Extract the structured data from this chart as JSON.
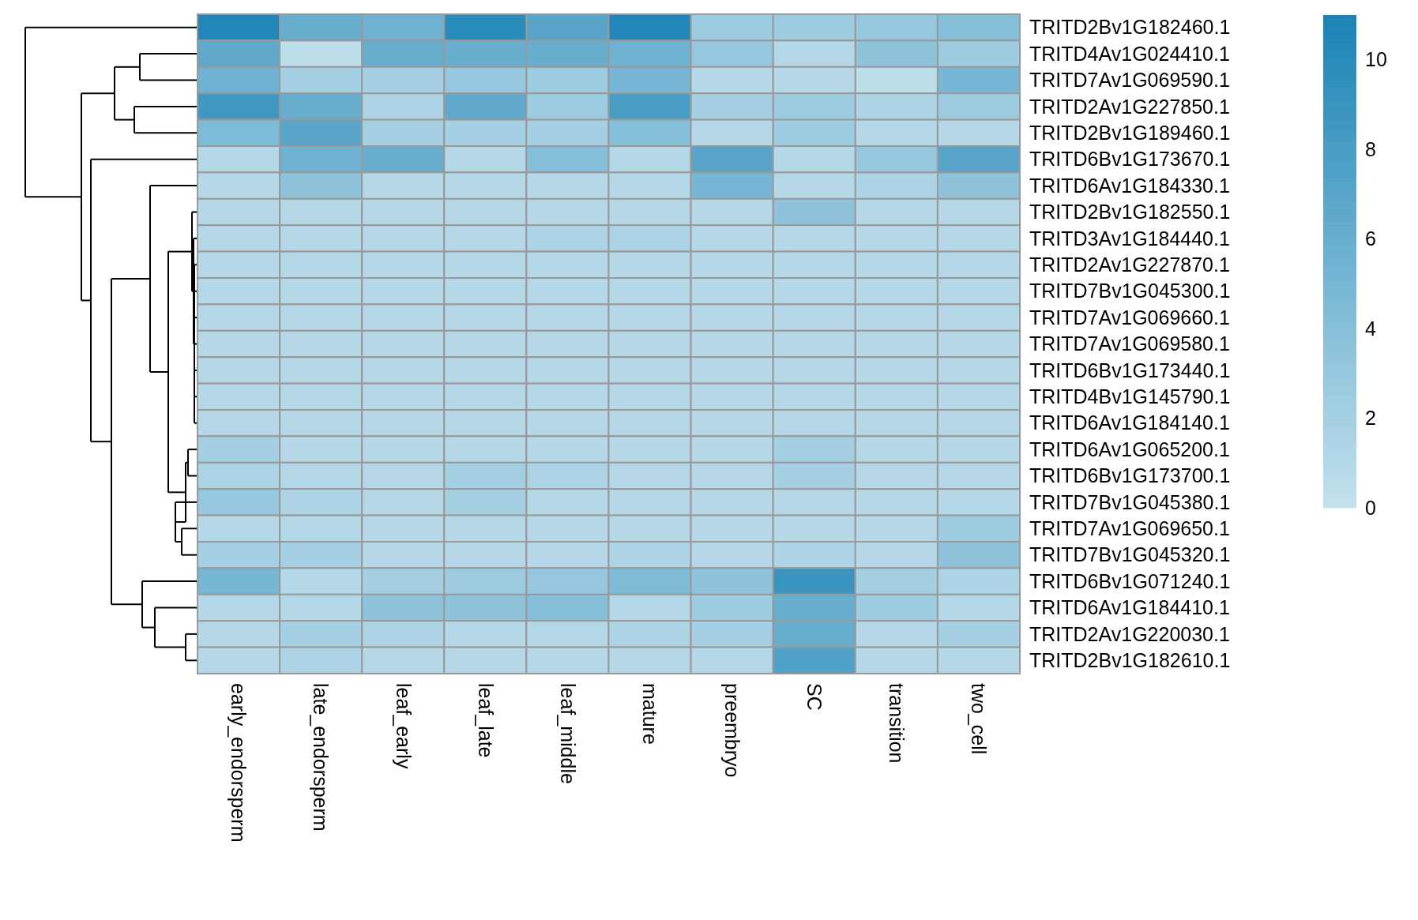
{
  "chart_data": {
    "type": "heatmap",
    "categories": [
      "early_endorsperm",
      "late_endorsperm",
      "leaf_early",
      "leaf_late",
      "leaf_middle",
      "mature",
      "preembryo",
      "SC",
      "transition",
      "two_cell"
    ],
    "y_categories": [
      "TRITD2Bv1G182460.1",
      "TRITD4Av1G024410.1",
      "TRITD7Av1G069590.1",
      "TRITD2Av1G227850.1",
      "TRITD2Bv1G189460.1",
      "TRITD6Bv1G173670.1",
      "TRITD6Av1G184330.1",
      "TRITD2Bv1G182550.1",
      "TRITD3Av1G184440.1",
      "TRITD2Av1G227870.1",
      "TRITD7Bv1G045300.1",
      "TRITD7Av1G069660.1",
      "TRITD7Av1G069580.1",
      "TRITD6Bv1G173440.1",
      "TRITD4Bv1G145790.1",
      "TRITD6Av1G184140.1",
      "TRITD6Av1G065200.1",
      "TRITD6Bv1G173700.1",
      "TRITD7Bv1G045380.1",
      "TRITD7Av1G069650.1",
      "TRITD7Bv1G045320.1",
      "TRITD6Bv1G071240.1",
      "TRITD6Av1G184410.1",
      "TRITD2Av1G220030.1",
      "TRITD2Bv1G182610.1"
    ],
    "cells": [
      [
        10.5,
        6,
        5.5,
        10,
        7,
        10.5,
        2.5,
        2.5,
        3,
        4
      ],
      [
        6.5,
        0.5,
        6,
        6,
        6,
        5.5,
        3,
        1,
        3.5,
        2.5
      ],
      [
        5.5,
        2,
        2,
        3,
        2.5,
        5,
        1,
        1,
        0.5,
        5
      ],
      [
        8.5,
        6,
        1.5,
        6.5,
        2.5,
        8,
        2,
        2.5,
        1.5,
        2.5
      ],
      [
        4.5,
        7,
        2,
        2,
        2,
        4,
        1,
        2.5,
        1,
        1
      ],
      [
        1,
        5.5,
        6,
        1,
        4,
        1,
        7,
        1,
        3,
        7
      ],
      [
        1,
        3.5,
        1,
        1,
        1,
        1,
        5,
        1,
        1.5,
        3.5
      ],
      [
        1,
        1,
        1,
        1,
        1,
        1,
        1,
        3.5,
        1,
        1
      ],
      [
        1,
        1,
        1,
        1,
        1.5,
        1.5,
        1,
        1,
        1,
        1
      ],
      [
        1,
        1,
        1,
        1,
        1,
        1,
        1,
        1,
        1,
        1
      ],
      [
        1,
        1,
        1,
        1,
        1,
        1,
        1,
        1,
        1,
        1
      ],
      [
        1,
        1,
        1,
        1,
        1,
        1,
        1,
        1,
        1,
        1
      ],
      [
        1,
        1,
        1,
        1,
        1,
        1,
        1,
        1,
        1,
        1
      ],
      [
        1,
        1,
        1,
        1,
        1,
        1,
        1,
        1,
        1,
        1
      ],
      [
        1,
        1,
        1,
        1,
        1,
        1,
        1,
        1,
        1,
        1
      ],
      [
        1,
        1,
        1,
        1,
        1,
        1,
        1,
        1,
        1,
        1
      ],
      [
        2,
        1,
        1,
        1,
        1,
        1,
        1,
        2,
        1,
        1
      ],
      [
        1.5,
        1,
        1,
        2,
        1.5,
        1,
        1,
        2,
        1,
        1
      ],
      [
        3,
        1.5,
        1,
        2,
        1,
        1,
        1,
        1,
        1,
        1
      ],
      [
        1,
        1,
        1,
        1,
        1,
        1,
        1,
        1,
        1,
        2.5
      ],
      [
        2,
        2,
        1,
        1,
        1,
        1.5,
        1,
        1.5,
        1,
        3.5
      ],
      [
        5,
        1,
        2,
        2.5,
        3,
        4.5,
        3.5,
        9,
        2,
        1.5
      ],
      [
        1,
        1,
        3.5,
        3.5,
        4,
        1,
        2.5,
        6,
        2.5,
        1
      ],
      [
        1,
        2,
        1.5,
        1,
        1,
        1.5,
        2,
        6,
        1,
        2
      ],
      [
        1,
        1.5,
        1,
        1,
        1,
        1,
        1,
        7.5,
        1,
        1
      ]
    ],
    "colors": [
      "#c4e1ed",
      "#1a83b5"
    ],
    "clim": [
      0,
      11
    ],
    "cticks": [
      0,
      2,
      4,
      6,
      8,
      10
    ]
  }
}
